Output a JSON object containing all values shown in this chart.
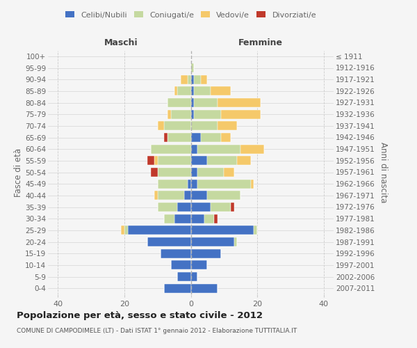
{
  "age_groups": [
    "0-4",
    "5-9",
    "10-14",
    "15-19",
    "20-24",
    "25-29",
    "30-34",
    "35-39",
    "40-44",
    "45-49",
    "50-54",
    "55-59",
    "60-64",
    "65-69",
    "70-74",
    "75-79",
    "80-84",
    "85-89",
    "90-94",
    "95-99",
    "100+"
  ],
  "birth_years": [
    "2007-2011",
    "2002-2006",
    "1997-2001",
    "1992-1996",
    "1987-1991",
    "1982-1986",
    "1977-1981",
    "1972-1976",
    "1967-1971",
    "1962-1966",
    "1957-1961",
    "1952-1956",
    "1947-1951",
    "1942-1946",
    "1937-1941",
    "1932-1936",
    "1927-1931",
    "1922-1926",
    "1917-1921",
    "1912-1916",
    "≤ 1911"
  ],
  "male_celibi": [
    8,
    4,
    6,
    9,
    13,
    19,
    5,
    4,
    2,
    1,
    0,
    0,
    0,
    0,
    0,
    0,
    0,
    0,
    0,
    0,
    0
  ],
  "male_coniugati": [
    0,
    0,
    0,
    0,
    0,
    1,
    3,
    6,
    8,
    9,
    10,
    10,
    12,
    7,
    8,
    6,
    7,
    4,
    1,
    0,
    0
  ],
  "male_vedovi": [
    0,
    0,
    0,
    0,
    0,
    1,
    0,
    0,
    1,
    0,
    0,
    1,
    0,
    0,
    2,
    1,
    0,
    1,
    2,
    0,
    0
  ],
  "male_divorziati": [
    0,
    0,
    0,
    0,
    0,
    0,
    0,
    0,
    0,
    0,
    2,
    2,
    0,
    1,
    0,
    0,
    0,
    0,
    0,
    0,
    0
  ],
  "female_celibi": [
    8,
    2,
    5,
    9,
    13,
    19,
    4,
    6,
    5,
    2,
    2,
    5,
    2,
    3,
    0,
    1,
    1,
    1,
    1,
    0,
    0
  ],
  "female_coniugati": [
    0,
    0,
    0,
    0,
    1,
    1,
    3,
    6,
    10,
    16,
    8,
    9,
    13,
    6,
    8,
    8,
    7,
    5,
    2,
    1,
    0
  ],
  "female_vedovi": [
    0,
    0,
    0,
    0,
    0,
    0,
    0,
    0,
    0,
    1,
    3,
    4,
    7,
    3,
    6,
    12,
    13,
    6,
    2,
    0,
    0
  ],
  "female_divorziati": [
    0,
    0,
    0,
    0,
    0,
    0,
    1,
    1,
    0,
    0,
    0,
    0,
    0,
    0,
    0,
    0,
    0,
    0,
    0,
    0,
    0
  ],
  "color_celibi": "#4472c4",
  "color_coniugati": "#c5d9a0",
  "color_vedovi": "#f5c96a",
  "color_divorziati": "#c0392b",
  "xlim": 43,
  "title": "Popolazione per età, sesso e stato civile - 2012",
  "subtitle": "COMUNE DI CAMPODIMELE (LT) - Dati ISTAT 1° gennaio 2012 - Elaborazione TUTTITALIA.IT",
  "ylabel_left": "Fasce di età",
  "ylabel_right": "Anni di nascita",
  "header_left": "Maschi",
  "header_right": "Femmine",
  "bg_color": "#f5f5f5",
  "grid_color": "#cccccc",
  "label_color": "#666666"
}
